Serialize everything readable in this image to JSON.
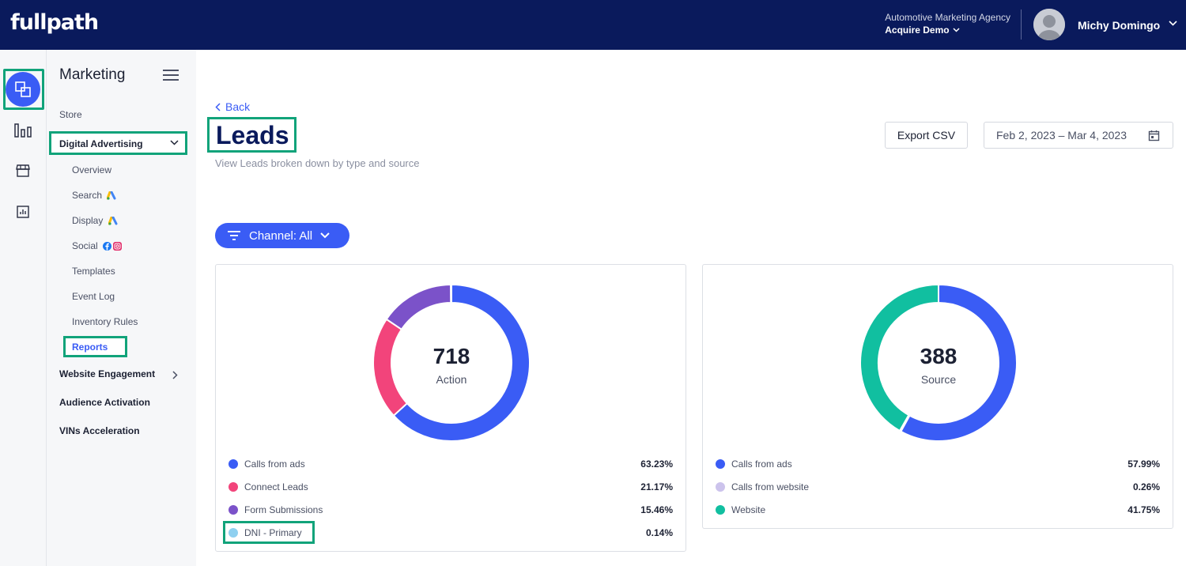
{
  "header": {
    "logo": "fullpath",
    "agency_name": "Automotive Marketing Agency",
    "agency_selected": "Acquire Demo",
    "user_name": "Michy Domingo"
  },
  "rail": {
    "icons": [
      "marketing-icon",
      "bar-chart-icon",
      "store-icon",
      "report-icon"
    ]
  },
  "nav": {
    "title": "Marketing",
    "store": "Store",
    "digital_advertising": "Digital Advertising",
    "sub_items": [
      "Overview",
      "Search",
      "Display",
      "Social",
      "Templates",
      "Event Log",
      "Inventory Rules"
    ],
    "reports": "Reports",
    "website_engagement": "Website Engagement",
    "audience_activation": "Audience Activation",
    "vins_acceleration": "VINs Acceleration"
  },
  "page": {
    "back": "Back",
    "title": "Leads",
    "subtitle": "View Leads broken down by type and source",
    "export_csv": "Export CSV",
    "date_range": "Feb 2, 2023 – Mar 4, 2023",
    "channel_filter": "Channel: All"
  },
  "colors": {
    "blue": "#3a5cf5",
    "pink": "#f2447b",
    "purple": "#7b52c9",
    "light_blue": "#8fd0f0",
    "lavender": "#ccc3ec",
    "teal": "#11bfa0",
    "navy": "#0a1a5c",
    "highlight_green": "#11a37a"
  },
  "chart_data": [
    {
      "type": "pie",
      "title": "",
      "total": "718",
      "center_label": "Action",
      "categories": [
        "Calls from ads",
        "Connect Leads",
        "Form Submissions",
        "DNI - Primary"
      ],
      "values": [
        63.23,
        21.17,
        15.46,
        0.14
      ],
      "value_labels": [
        "63.23%",
        "21.17%",
        "15.46%",
        "0.14%"
      ],
      "colors": [
        "#3a5cf5",
        "#f2447b",
        "#7b52c9",
        "#8fd0f0"
      ]
    },
    {
      "type": "pie",
      "title": "",
      "total": "388",
      "center_label": "Source",
      "categories": [
        "Calls from ads",
        "Calls from website",
        "Website"
      ],
      "values": [
        57.99,
        0.26,
        41.75
      ],
      "value_labels": [
        "57.99%",
        "0.26%",
        "41.75%"
      ],
      "colors": [
        "#3a5cf5",
        "#ccc3ec",
        "#11bfa0"
      ]
    }
  ]
}
